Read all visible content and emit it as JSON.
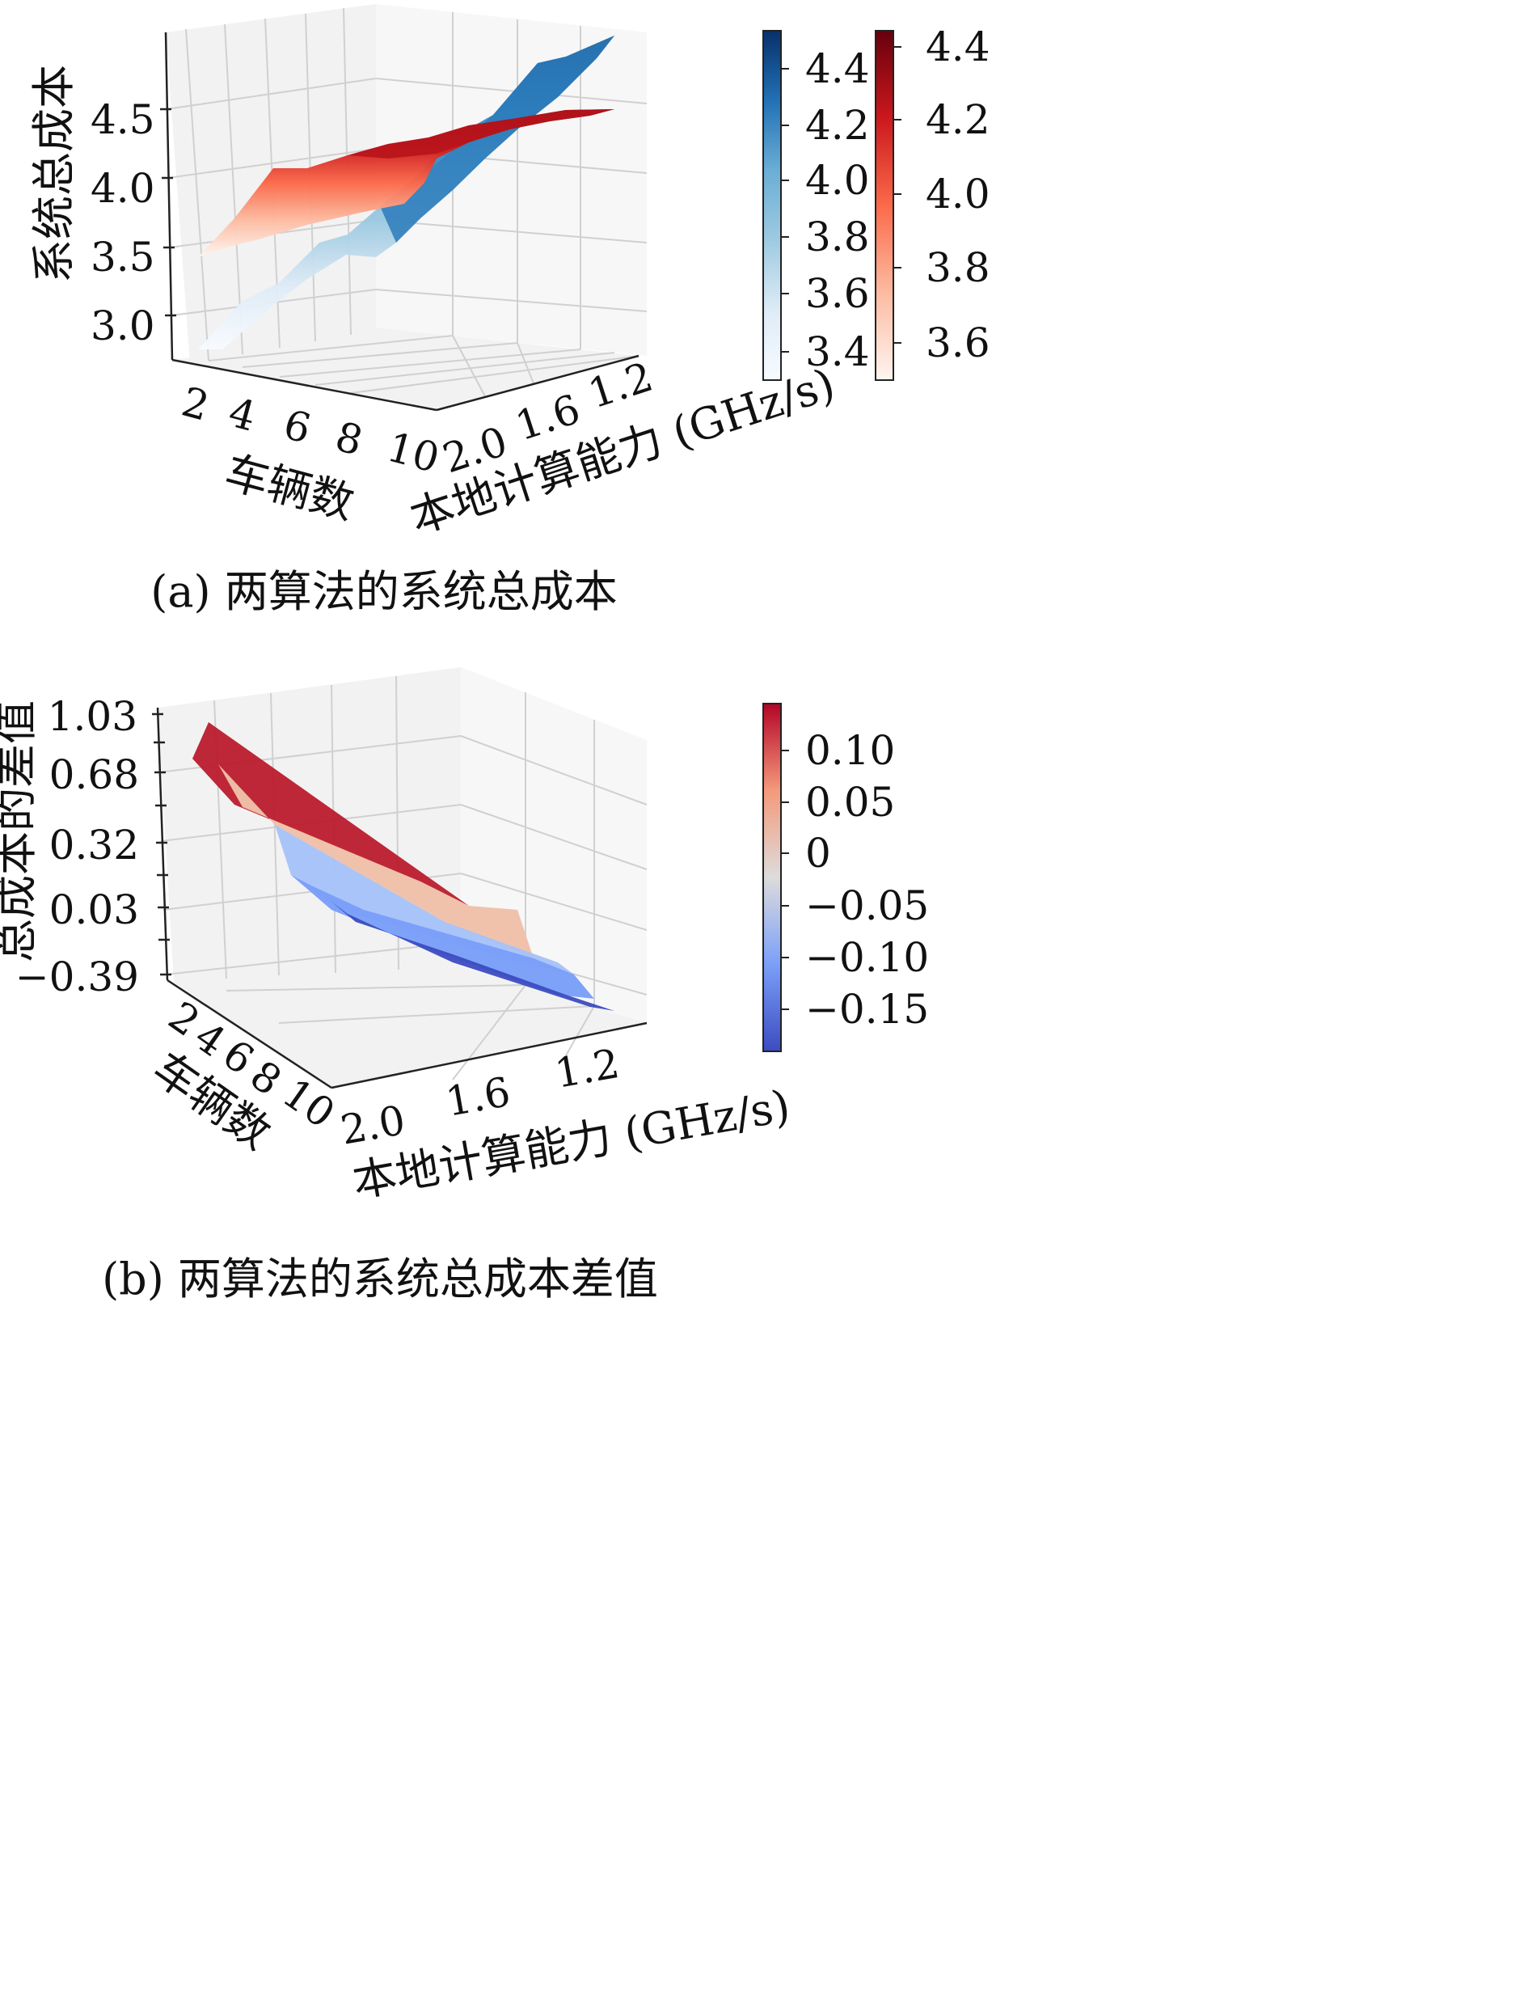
{
  "chart_data": [
    {
      "type": "surface3d",
      "caption": "(a) 两算法的系统总成本",
      "xlabel": "车辆数",
      "ylabel": "本地计算能力 (GHz/s)",
      "zlabel": "系统总成本",
      "x_ticks": [
        "2",
        "4",
        "6",
        "8",
        "10"
      ],
      "y_ticks": [
        "2.0",
        "1.6",
        "1.2"
      ],
      "z_ticks": [
        "3.0",
        "3.5",
        "4.0",
        "4.5"
      ],
      "zlim": [
        2.75,
        4.95
      ],
      "colorbars": [
        {
          "colormap": "Blues",
          "ticks": [
            "3.4",
            "3.6",
            "3.8",
            "4.0",
            "4.2",
            "4.4"
          ],
          "range": [
            3.28,
            4.5
          ]
        },
        {
          "colormap": "Reds",
          "ticks": [
            "3.6",
            "3.8",
            "4.0",
            "4.2",
            "4.4"
          ],
          "range": [
            3.5,
            4.45
          ]
        }
      ],
      "series": [
        {
          "colormap": "Blues",
          "x": [
            1,
            2,
            3,
            4,
            5,
            6,
            7,
            8,
            9,
            10
          ],
          "z": [
            2.8,
            3.0,
            3.2,
            3.45,
            3.6,
            3.8,
            4.05,
            4.3,
            4.5,
            4.75
          ]
        },
        {
          "colormap": "Reds",
          "x": [
            1,
            2,
            3,
            4,
            5,
            6,
            7,
            8,
            9,
            10
          ],
          "z": [
            3.5,
            3.7,
            3.9,
            4.02,
            4.1,
            4.2,
            4.3,
            4.35,
            4.4,
            4.45
          ]
        }
      ]
    },
    {
      "type": "surface3d",
      "caption": "(b) 两算法的系统总成本差值",
      "xlabel": "车辆数",
      "ylabel": "本地计算能力 (GHz/s)",
      "zlabel": "总成本的差值",
      "x_ticks": [
        "2",
        "4",
        "6",
        "8",
        "10"
      ],
      "y_ticks": [
        "2.0",
        "1.6",
        "1.2"
      ],
      "z_ticks": [
        "1.03",
        "0.68",
        "0.32",
        "0.03",
        "−0.39"
      ],
      "colorbars": [
        {
          "colormap": "coolwarm",
          "ticks": [
            "0.10",
            "0.05",
            "0",
            "−0.05",
            "−0.10",
            "−0.15"
          ],
          "range": [
            -0.2,
            0.14
          ]
        }
      ]
    }
  ]
}
